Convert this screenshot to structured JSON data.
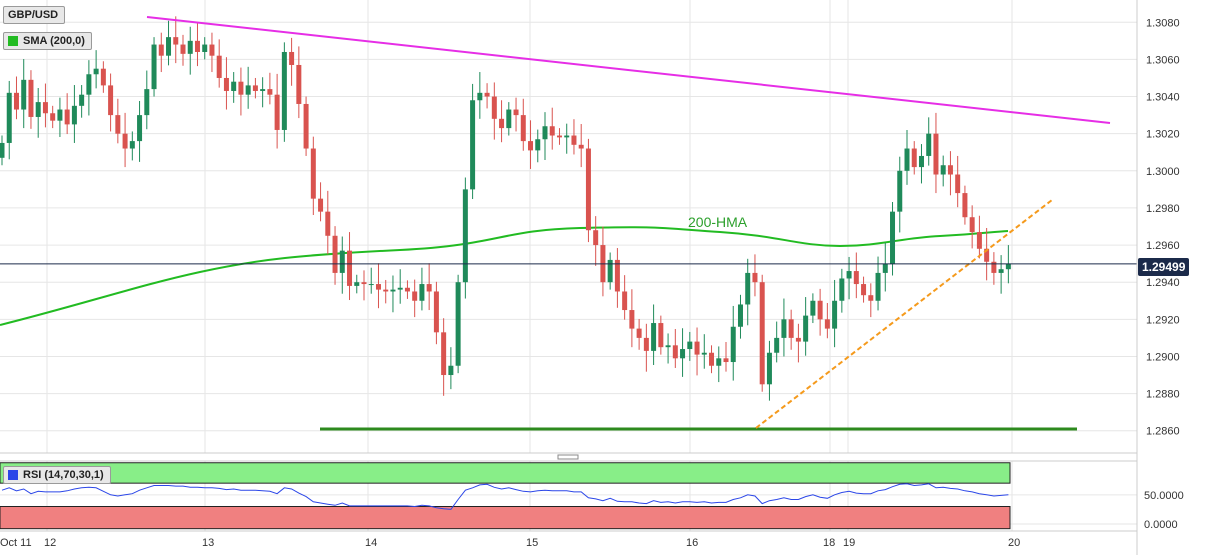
{
  "legend": {
    "symbol": "GBP/USD",
    "sma": "SMA (200,0)",
    "rsi": "RSI (14,70,30,1)",
    "hma": "200-HMA"
  },
  "price_tag": "1.29499",
  "colors": {
    "up": "#1f8a5a",
    "down": "#d9534f",
    "hma": "#22bb22",
    "resistance": "#e62ee6",
    "support": "#2d8a1e",
    "trendline": "#f59a1c",
    "rsi_line": "#2b46e8",
    "rsi_overbought": "#88ee88",
    "rsi_oversold": "#f08080"
  },
  "chart_data": [
    {
      "type": "candlestick",
      "title": "GBP/USD",
      "x_tick_labels": [
        "Oct 11",
        "12",
        "13",
        "14",
        "15",
        "16",
        "18",
        "19",
        "20"
      ],
      "y_ticks": [
        1.286,
        1.288,
        1.29,
        1.292,
        1.294,
        1.296,
        1.298,
        1.3,
        1.302,
        1.304,
        1.306,
        1.308
      ],
      "ylim": [
        1.2848,
        1.3092
      ],
      "last_price": 1.29499,
      "grid": true,
      "closes": [
        1.3015,
        1.3042,
        1.3033,
        1.3049,
        1.3029,
        1.3037,
        1.3031,
        1.3027,
        1.3033,
        1.3025,
        1.3035,
        1.3041,
        1.3052,
        1.3055,
        1.3046,
        1.303,
        1.302,
        1.3012,
        1.3016,
        1.303,
        1.3044,
        1.3068,
        1.3062,
        1.3072,
        1.3068,
        1.3063,
        1.307,
        1.3064,
        1.3068,
        1.3062,
        1.305,
        1.3043,
        1.3048,
        1.3041,
        1.3046,
        1.3043,
        1.3044,
        1.3041,
        1.3022,
        1.3064,
        1.3057,
        1.3036,
        1.3012,
        1.2985,
        1.2978,
        1.2965,
        1.2945,
        1.2957,
        1.2938,
        1.294,
        1.2939,
        1.2939,
        1.2936,
        1.2935,
        1.2936,
        1.2937,
        1.2935,
        1.293,
        1.2939,
        1.2935,
        1.2913,
        1.289,
        1.2895,
        1.294,
        1.299,
        1.3038,
        1.3042,
        1.304,
        1.3028,
        1.3023,
        1.3033,
        1.303,
        1.3016,
        1.3011,
        1.3017,
        1.3024,
        1.3019,
        1.3018,
        1.3019,
        1.3014,
        1.3012,
        1.2968,
        1.296,
        1.294,
        1.2952,
        1.2935,
        1.2925,
        1.2915,
        1.291,
        1.2903,
        1.2918,
        1.2905,
        1.2906,
        1.2899,
        1.2904,
        1.2908,
        1.2901,
        1.2902,
        1.2895,
        1.2899,
        1.2897,
        1.2916,
        1.2928,
        1.2945,
        1.294,
        1.2885,
        1.2902,
        1.291,
        1.292,
        1.291,
        1.2908,
        1.2922,
        1.293,
        1.292,
        1.2915,
        1.293,
        1.2942,
        1.2946,
        1.2939,
        1.2933,
        1.293,
        1.2945,
        1.295,
        1.2978,
        1.3,
        1.3012,
        1.3002,
        1.3008,
        1.302,
        1.2998,
        1.3003,
        1.2998,
        1.2988,
        1.2975,
        1.2967,
        1.2958,
        1.2951,
        1.2945,
        1.2947,
        1.295
      ]
    },
    {
      "type": "line",
      "title": "RSI (14,70,30,1)",
      "y_ticks": [
        0.0,
        50.0
      ],
      "y_tick_labels": [
        "0.0000",
        "50.0000"
      ],
      "ylim": [
        -12,
        108
      ],
      "overbought": 70,
      "oversold": 30,
      "series": [
        {
          "values": [
            58,
            62,
            57,
            60,
            52,
            56,
            55,
            55,
            55,
            57,
            60,
            62,
            63,
            62,
            56,
            50,
            48,
            50,
            52,
            58,
            62,
            66,
            66,
            66,
            65,
            65,
            63,
            63,
            62,
            62,
            61,
            59,
            60,
            58,
            58,
            58,
            57,
            56,
            52,
            62,
            60,
            53,
            47,
            38,
            36,
            34,
            32,
            36,
            31,
            31,
            31,
            31,
            31,
            31,
            31,
            31,
            31,
            30,
            32,
            31,
            28,
            26,
            25,
            42,
            58,
            62,
            67,
            68,
            63,
            60,
            62,
            59,
            56,
            55,
            57,
            58,
            57,
            57,
            57,
            55,
            55,
            45,
            43,
            40,
            44,
            39,
            38,
            38,
            36,
            35,
            40,
            37,
            38,
            36,
            38,
            38,
            37,
            38,
            36,
            37,
            37,
            42,
            45,
            50,
            48,
            35,
            40,
            42,
            45,
            42,
            42,
            47,
            50,
            46,
            44,
            50,
            54,
            56,
            53,
            52,
            52,
            57,
            59,
            64,
            68,
            69,
            66,
            67,
            69,
            62,
            63,
            61,
            60,
            57,
            55,
            52,
            50,
            48,
            49,
            50
          ]
        }
      ]
    }
  ]
}
